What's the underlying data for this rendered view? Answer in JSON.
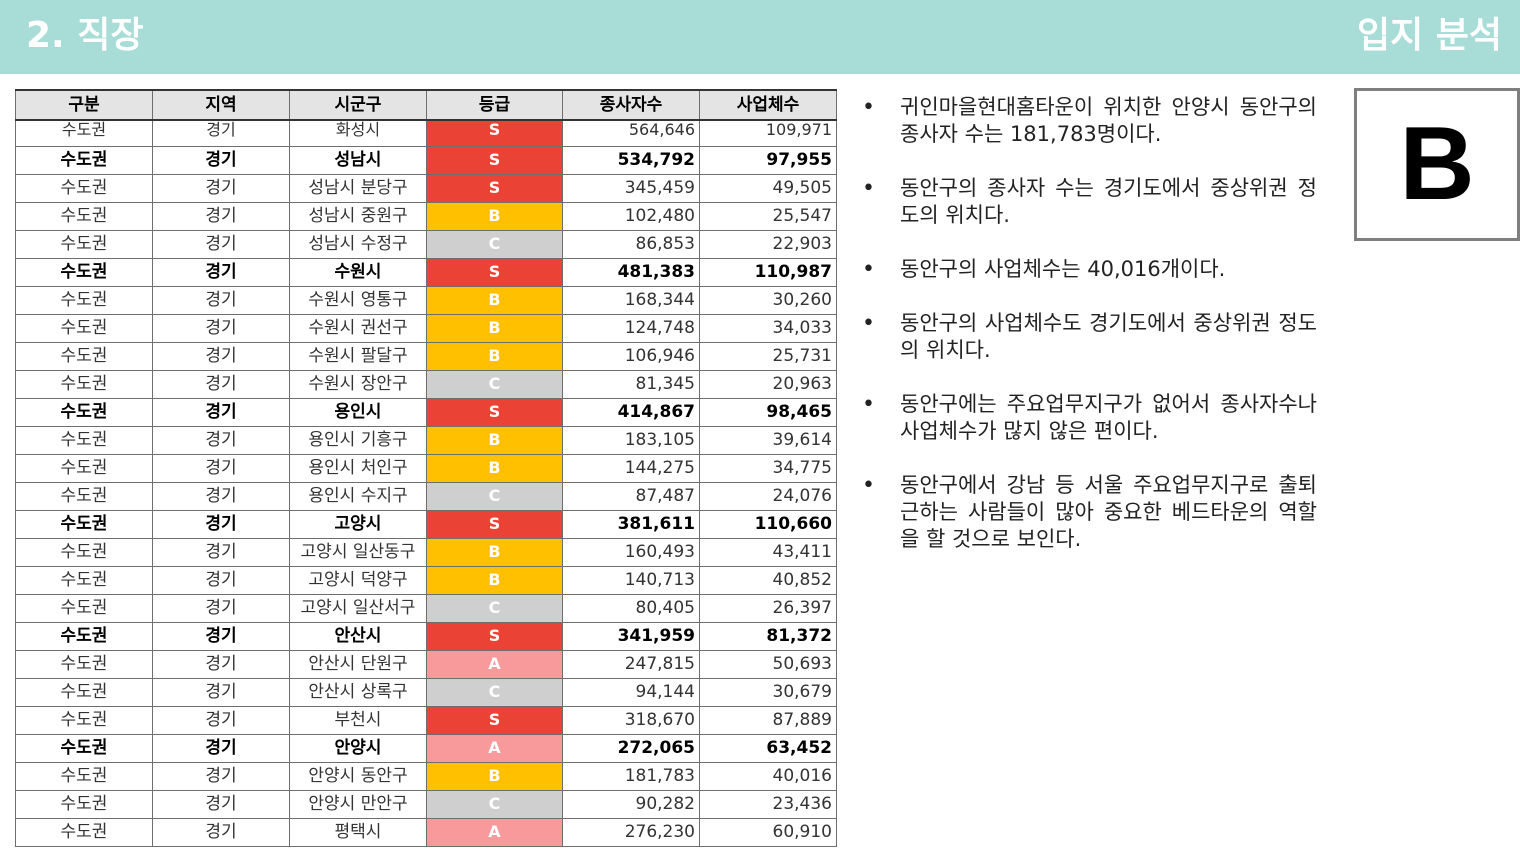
{
  "header": {
    "title": "2. 직장",
    "section": "입지 분석"
  },
  "table": {
    "columns": [
      "구분",
      "지역",
      "시군구",
      "등급",
      "종사자수",
      "사업체수"
    ],
    "rows": [
      {
        "region": "수도권",
        "province": "경기",
        "district": "화성시",
        "grade": "S",
        "workers": "564,646",
        "businesses": "109,971",
        "bold": false
      },
      {
        "region": "수도권",
        "province": "경기",
        "district": "성남시",
        "grade": "S",
        "workers": "534,792",
        "businesses": "97,955",
        "bold": true
      },
      {
        "region": "수도권",
        "province": "경기",
        "district": "성남시 분당구",
        "grade": "S",
        "workers": "345,459",
        "businesses": "49,505",
        "bold": false
      },
      {
        "region": "수도권",
        "province": "경기",
        "district": "성남시 중원구",
        "grade": "B",
        "workers": "102,480",
        "businesses": "25,547",
        "bold": false
      },
      {
        "region": "수도권",
        "province": "경기",
        "district": "성남시 수정구",
        "grade": "C",
        "workers": "86,853",
        "businesses": "22,903",
        "bold": false
      },
      {
        "region": "수도권",
        "province": "경기",
        "district": "수원시",
        "grade": "S",
        "workers": "481,383",
        "businesses": "110,987",
        "bold": true
      },
      {
        "region": "수도권",
        "province": "경기",
        "district": "수원시 영통구",
        "grade": "B",
        "workers": "168,344",
        "businesses": "30,260",
        "bold": false
      },
      {
        "region": "수도권",
        "province": "경기",
        "district": "수원시 권선구",
        "grade": "B",
        "workers": "124,748",
        "businesses": "34,033",
        "bold": false
      },
      {
        "region": "수도권",
        "province": "경기",
        "district": "수원시 팔달구",
        "grade": "B",
        "workers": "106,946",
        "businesses": "25,731",
        "bold": false
      },
      {
        "region": "수도권",
        "province": "경기",
        "district": "수원시 장안구",
        "grade": "C",
        "workers": "81,345",
        "businesses": "20,963",
        "bold": false
      },
      {
        "region": "수도권",
        "province": "경기",
        "district": "용인시",
        "grade": "S",
        "workers": "414,867",
        "businesses": "98,465",
        "bold": true
      },
      {
        "region": "수도권",
        "province": "경기",
        "district": "용인시 기흥구",
        "grade": "B",
        "workers": "183,105",
        "businesses": "39,614",
        "bold": false
      },
      {
        "region": "수도권",
        "province": "경기",
        "district": "용인시 처인구",
        "grade": "B",
        "workers": "144,275",
        "businesses": "34,775",
        "bold": false
      },
      {
        "region": "수도권",
        "province": "경기",
        "district": "용인시 수지구",
        "grade": "C",
        "workers": "87,487",
        "businesses": "24,076",
        "bold": false
      },
      {
        "region": "수도권",
        "province": "경기",
        "district": "고양시",
        "grade": "S",
        "workers": "381,611",
        "businesses": "110,660",
        "bold": true
      },
      {
        "region": "수도권",
        "province": "경기",
        "district": "고양시 일산동구",
        "grade": "B",
        "workers": "160,493",
        "businesses": "43,411",
        "bold": false
      },
      {
        "region": "수도권",
        "province": "경기",
        "district": "고양시 덕양구",
        "grade": "B",
        "workers": "140,713",
        "businesses": "40,852",
        "bold": false
      },
      {
        "region": "수도권",
        "province": "경기",
        "district": "고양시 일산서구",
        "grade": "C",
        "workers": "80,405",
        "businesses": "26,397",
        "bold": false
      },
      {
        "region": "수도권",
        "province": "경기",
        "district": "안산시",
        "grade": "S",
        "workers": "341,959",
        "businesses": "81,372",
        "bold": true
      },
      {
        "region": "수도권",
        "province": "경기",
        "district": "안산시 단원구",
        "grade": "A",
        "workers": "247,815",
        "businesses": "50,693",
        "bold": false
      },
      {
        "region": "수도권",
        "province": "경기",
        "district": "안산시 상록구",
        "grade": "C",
        "workers": "94,144",
        "businesses": "30,679",
        "bold": false
      },
      {
        "region": "수도권",
        "province": "경기",
        "district": "부천시",
        "grade": "S",
        "workers": "318,670",
        "businesses": "87,889",
        "bold": false
      },
      {
        "region": "수도권",
        "province": "경기",
        "district": "안양시",
        "grade": "A",
        "workers": "272,065",
        "businesses": "63,452",
        "bold": true
      },
      {
        "region": "수도권",
        "province": "경기",
        "district": "안양시 동안구",
        "grade": "B",
        "workers": "181,783",
        "businesses": "40,016",
        "bold": false
      },
      {
        "region": "수도권",
        "province": "경기",
        "district": "안양시 만안구",
        "grade": "C",
        "workers": "90,282",
        "businesses": "23,436",
        "bold": false
      },
      {
        "region": "수도권",
        "province": "경기",
        "district": "평택시",
        "grade": "A",
        "workers": "276,230",
        "businesses": "60,910",
        "bold": false
      }
    ]
  },
  "bullets": [
    "귀인마을현대홈타운이 위치한 안양시 동안구의 종사자 수는 181,783명이다.",
    "동안구의 종사자 수는 경기도에서 중상위권 정도의 위치다.",
    "동안구의 사업체수는 40,016개이다.",
    "동안구의 사업체수도 경기도에서 중상위권 정도의 위치다.",
    "동안구에는 주요업무지구가 없어서 종사자수나 사업체수가 많지 않은 편이다.",
    "동안구에서 강남 등 서울 주요업무지구로 출퇴근하는 사람들이 많아 중요한 베드타운의 역할을 할 것으로 보인다."
  ],
  "bullet_marker": "•",
  "overall_grade": "B",
  "colors": {
    "header_bg": "#a7ddd6",
    "grade_S": "#ea4336",
    "grade_A": "#f8999b",
    "grade_B": "#ffc000",
    "grade_C": "#cfcfcf"
  }
}
